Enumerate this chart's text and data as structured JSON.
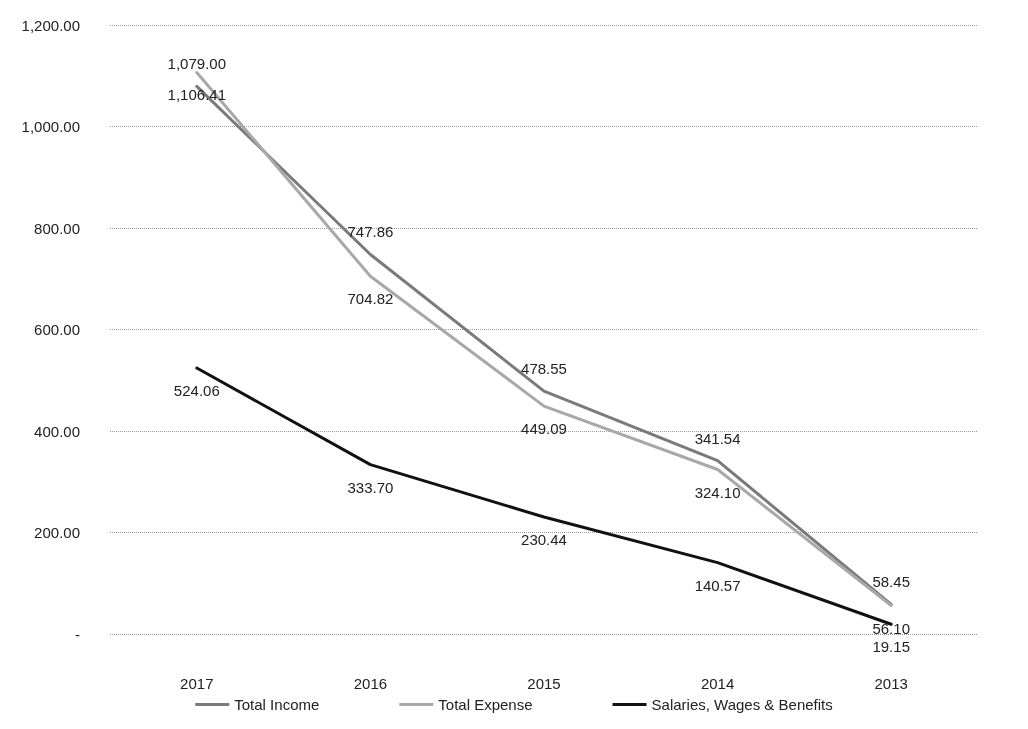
{
  "chart_data": {
    "type": "line",
    "categories": [
      "2017",
      "2016",
      "2015",
      "2014",
      "2013"
    ],
    "series": [
      {
        "name": "Total Income",
        "color": "#7a7a7a",
        "values": [
          1079,
          747.86,
          478.55,
          341.54,
          58.45
        ],
        "value_labels": [
          "1,079.00",
          "747.86",
          "478.55",
          "341.54",
          "58.45"
        ]
      },
      {
        "name": "Total Expense",
        "color": "#a8a8a8",
        "values": [
          1106.41,
          704.82,
          449.09,
          324.1,
          56.1
        ],
        "value_labels": [
          "1,106.41",
          "704.82",
          "449.09",
          "324.10",
          "56.10"
        ]
      },
      {
        "name": "Salaries, Wages & Benefits",
        "color": "#111111",
        "values": [
          524.06,
          333.7,
          230.44,
          140.57,
          19.15
        ],
        "value_labels": [
          "524.06",
          "333.70",
          "230.44",
          "140.57",
          "19.15"
        ]
      }
    ],
    "ylim": [
      0,
      1200
    ],
    "yticks": [
      {
        "value": 0,
        "label": "-"
      },
      {
        "value": 200,
        "label": "200.00"
      },
      {
        "value": 400,
        "label": "400.00"
      },
      {
        "value": 600,
        "label": "600.00"
      },
      {
        "value": 800,
        "label": "800.00"
      },
      {
        "value": 1000,
        "label": "1,000.00"
      },
      {
        "value": 1200,
        "label": "1,200.00"
      }
    ],
    "grid": "y",
    "legend": "bottom",
    "marker": "none",
    "line_style": "solid"
  }
}
